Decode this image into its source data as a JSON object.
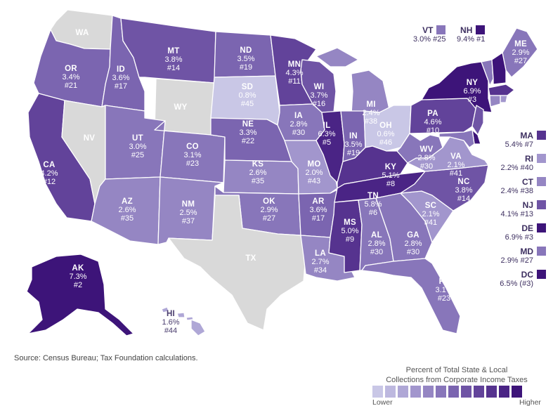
{
  "colors": {
    "scale": [
      "#c9c7e6",
      "#bdb8df",
      "#afa7d6",
      "#a296cd",
      "#9586c3",
      "#8876ba",
      "#7b65b0",
      "#6f54a5",
      "#62439a",
      "#56338f",
      "#4a2485",
      "#3d1479"
    ],
    "no_tax": "#d9d9d9"
  },
  "states": {
    "WA": {
      "abbr": "WA",
      "rate": "",
      "rank": "",
      "level": -1
    },
    "OR": {
      "abbr": "OR",
      "rate": "3.4%",
      "rank": "#21",
      "level": 6
    },
    "CA": {
      "abbr": "CA",
      "rate": "4.2%",
      "rank": "#12",
      "level": 8
    },
    "NV": {
      "abbr": "NV",
      "rate": "",
      "rank": "",
      "level": -1
    },
    "ID": {
      "abbr": "ID",
      "rate": "3.6%",
      "rank": "#17",
      "level": 6
    },
    "MT": {
      "abbr": "MT",
      "rate": "3.8%",
      "rank": "#14",
      "level": 7
    },
    "WY": {
      "abbr": "WY",
      "rate": "",
      "rank": "",
      "level": -1
    },
    "UT": {
      "abbr": "UT",
      "rate": "3.0%",
      "rank": "#25",
      "level": 5
    },
    "AZ": {
      "abbr": "AZ",
      "rate": "2.6%",
      "rank": "#35",
      "level": 4
    },
    "CO": {
      "abbr": "CO",
      "rate": "3.1%",
      "rank": "#23",
      "level": 5
    },
    "NM": {
      "abbr": "NM",
      "rate": "2.5%",
      "rank": "#37",
      "level": 4
    },
    "ND": {
      "abbr": "ND",
      "rate": "3.5%",
      "rank": "#19",
      "level": 6
    },
    "SD": {
      "abbr": "SD",
      "rate": "0.8%",
      "rank": "#45",
      "level": 0
    },
    "NE": {
      "abbr": "NE",
      "rate": "3.3%",
      "rank": "#22",
      "level": 6
    },
    "KS": {
      "abbr": "KS",
      "rate": "2.6%",
      "rank": "#35",
      "level": 4
    },
    "OK": {
      "abbr": "OK",
      "rate": "2.9%",
      "rank": "#27",
      "level": 5
    },
    "TX": {
      "abbr": "TX",
      "rate": "",
      "rank": "",
      "level": -1
    },
    "MN": {
      "abbr": "MN",
      "rate": "4.3%",
      "rank": "#11",
      "level": 8
    },
    "IA": {
      "abbr": "IA",
      "rate": "2.8%",
      "rank": "#30",
      "level": 5
    },
    "MO": {
      "abbr": "MO",
      "rate": "2.0%",
      "rank": "#43",
      "level": 3
    },
    "AR": {
      "abbr": "AR",
      "rate": "3.6%",
      "rank": "#17",
      "level": 6
    },
    "LA": {
      "abbr": "LA",
      "rate": "2.7%",
      "rank": "#34",
      "level": 4
    },
    "WI": {
      "abbr": "WI",
      "rate": "3.7%",
      "rank": "#16",
      "level": 7
    },
    "IL": {
      "abbr": "IL",
      "rate": "6.3%",
      "rank": "#5",
      "level": 10
    },
    "MI": {
      "abbr": "MI",
      "rate": "2.4%",
      "rank": "#38",
      "level": 4
    },
    "IN": {
      "abbr": "IN",
      "rate": "3.5%",
      "rank": "#19",
      "level": 6
    },
    "OH": {
      "abbr": "OH",
      "rate": "0.6%",
      "rank": "#46",
      "level": 0
    },
    "KY": {
      "abbr": "KY",
      "rate": "5.1%",
      "rank": "#8",
      "level": 9
    },
    "TN": {
      "abbr": "TN",
      "rate": "5.8%",
      "rank": "#6",
      "level": 10
    },
    "MS": {
      "abbr": "MS",
      "rate": "5.0%",
      "rank": "#9",
      "level": 9
    },
    "AL": {
      "abbr": "AL",
      "rate": "2.8%",
      "rank": "#30",
      "level": 5
    },
    "GA": {
      "abbr": "GA",
      "rate": "2.8%",
      "rank": "#30",
      "level": 5
    },
    "FL": {
      "abbr": "FL",
      "rate": "3.1%",
      "rank": "#23",
      "level": 5
    },
    "SC": {
      "abbr": "SC",
      "rate": "2.1%",
      "rank": "#41",
      "level": 3
    },
    "NC": {
      "abbr": "NC",
      "rate": "3.8%",
      "rank": "#14",
      "level": 7
    },
    "VA": {
      "abbr": "VA",
      "rate": "2.1%",
      "rank": "#41",
      "level": 3
    },
    "WV": {
      "abbr": "WV",
      "rate": "2.8%",
      "rank": "#30",
      "level": 5
    },
    "PA": {
      "abbr": "PA",
      "rate": "4.6%",
      "rank": "#10",
      "level": 8
    },
    "NY": {
      "abbr": "NY",
      "rate": "6.9%",
      "rank": "#3",
      "level": 11
    },
    "ME": {
      "abbr": "ME",
      "rate": "2.9%",
      "rank": "#27",
      "level": 5
    },
    "AK": {
      "abbr": "AK",
      "rate": "7.3%",
      "rank": "#2",
      "level": 11
    },
    "HI": {
      "abbr": "HI",
      "rate": "1.6%",
      "rank": "#44",
      "level": 2
    }
  },
  "top_keys": {
    "VT": {
      "abbr": "VT",
      "line": "3.0% #25",
      "level": 5
    },
    "NH": {
      "abbr": "NH",
      "line": "9.4% #1",
      "level": 11
    }
  },
  "side_keys": [
    {
      "abbr": "MA",
      "line": "5.4% #7",
      "level": 9
    },
    {
      "abbr": "RI",
      "line": "2.2% #40",
      "level": 3
    },
    {
      "abbr": "CT",
      "line": "2.4% #38",
      "level": 4
    },
    {
      "abbr": "NJ",
      "line": "4.1% #13",
      "level": 7
    },
    {
      "abbr": "DE",
      "line": "6.9% #3",
      "level": 11
    },
    {
      "abbr": "MD",
      "line": "2.9% #27",
      "level": 5
    },
    {
      "abbr": "DC",
      "line": "6.5% (#3)",
      "level": 11
    }
  ],
  "source": "Source: Census Bureau; Tax Foundation calculations.",
  "legend": {
    "title_line1": "Percent of Total State & Local",
    "title_line2": "Collections from Corporate Income Taxes",
    "lower": "Lower",
    "higher": "Higher"
  }
}
